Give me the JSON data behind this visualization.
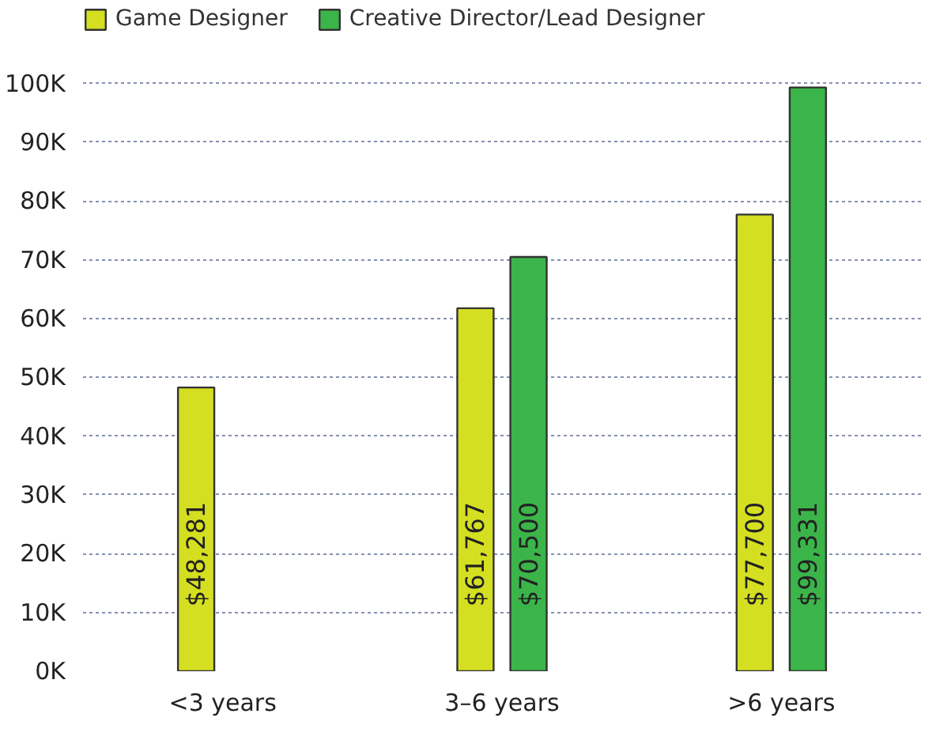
{
  "chart_data": {
    "type": "bar",
    "categories": [
      "<3 years",
      "3–6 years",
      ">6 years"
    ],
    "series": [
      {
        "name": "Game Designer",
        "color": "#d5df22",
        "values": [
          48281,
          61767,
          77700
        ],
        "value_labels": [
          "$48,281",
          "$61,767",
          "$77,700"
        ]
      },
      {
        "name": "Creative Director/Lead Designer",
        "color": "#3bb54a",
        "values": [
          null,
          70500,
          99331
        ],
        "value_labels": [
          null,
          "$70,500",
          "$99,331"
        ]
      }
    ],
    "ylim": [
      0,
      100000
    ],
    "yticks": [
      {
        "value": 0,
        "label": "0K"
      },
      {
        "value": 10000,
        "label": "10K"
      },
      {
        "value": 20000,
        "label": "20K"
      },
      {
        "value": 30000,
        "label": "30K"
      },
      {
        "value": 40000,
        "label": "40K"
      },
      {
        "value": 50000,
        "label": "50K"
      },
      {
        "value": 60000,
        "label": "60K"
      },
      {
        "value": 70000,
        "label": "70K"
      },
      {
        "value": 80000,
        "label": "80K"
      },
      {
        "value": 90000,
        "label": "90K"
      },
      {
        "value": 100000,
        "label": "100K"
      }
    ],
    "grid": "y",
    "legend": "top left"
  }
}
